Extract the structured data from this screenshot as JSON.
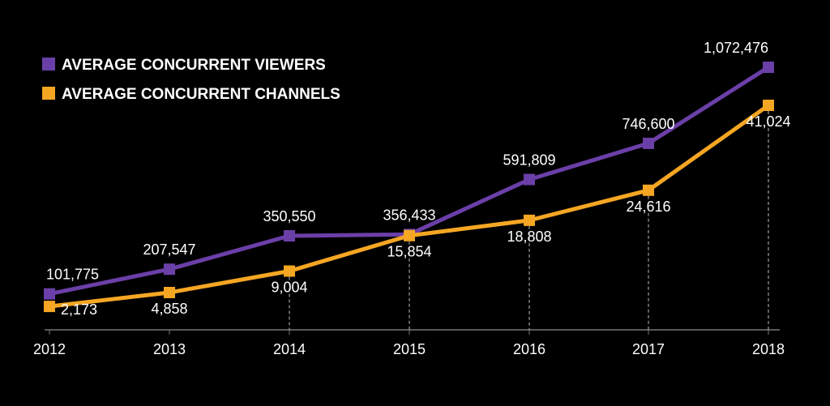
{
  "chart_data": {
    "type": "line",
    "title": "",
    "xlabel": "",
    "ylabel": "",
    "categories": [
      "2012",
      "2013",
      "2014",
      "2015",
      "2016",
      "2017",
      "2018"
    ],
    "series": [
      {
        "name": "AVERAGE CONCURRENT VIEWERS",
        "color": "#6b3fa8",
        "values": [
          101775,
          207547,
          350550,
          356433,
          591809,
          746600,
          1072476
        ],
        "labels": [
          "101,775",
          "207,547",
          "350,550",
          "356,433",
          "591,809",
          "746,600",
          "1,072,476"
        ]
      },
      {
        "name": "AVERAGE CONCURRENT CHANNELS",
        "color": "#f5a623",
        "values": [
          2173,
          4858,
          9004,
          15854,
          18808,
          24616,
          41024
        ],
        "labels": [
          "2,173",
          "4,858",
          "9,004",
          "15,854",
          "18,808",
          "24,616",
          "41,024"
        ]
      }
    ],
    "grid": false,
    "legend": "top-left",
    "background": "#000000"
  }
}
